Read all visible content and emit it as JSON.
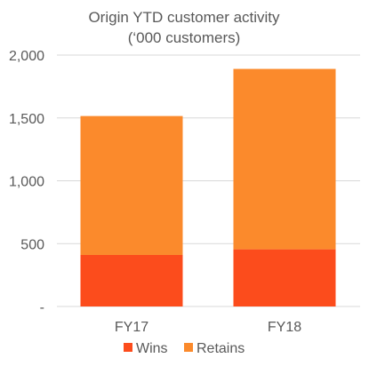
{
  "chart_data": {
    "type": "bar",
    "stacked": true,
    "title": [
      "Origin YTD customer activity",
      "(‘000 customers)"
    ],
    "categories": [
      "FY17",
      "FY18"
    ],
    "series": [
      {
        "name": "Wins",
        "values": [
          410,
          455
        ],
        "color": "#fc4c1c"
      },
      {
        "name": "Retains",
        "values": [
          1105,
          1435
        ],
        "color": "#fb8a2c"
      }
    ],
    "ylim": [
      0,
      2000
    ],
    "yticks": [
      0,
      500,
      1000,
      1500,
      2000
    ],
    "ytick_labels": [
      "-",
      "500",
      "1,000",
      "1,500",
      "2,000"
    ],
    "grid": true,
    "legend": "bottom"
  }
}
